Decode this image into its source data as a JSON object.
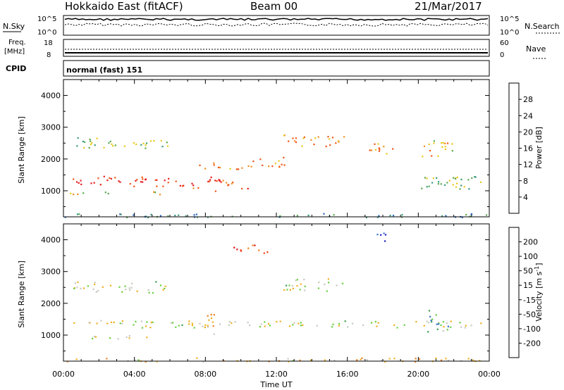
{
  "header": {
    "title": "Hokkaido East (fitACF)",
    "beam": "Beam 00",
    "date": "21/Mar/2017"
  },
  "status_panels": {
    "nsky_label": "N.Sky",
    "nsky_ticks": [
      "10^5",
      "10^0"
    ],
    "nsearch_label": "N.Search",
    "nsearch_ticks": [
      "10^5",
      "10^0"
    ],
    "freq_label_1": "Freq.",
    "freq_label_2": "[MHz]",
    "freq_ticks": [
      "18",
      "8"
    ],
    "nave_label": "Nave",
    "nave_ticks": [
      "60",
      "0"
    ],
    "cpid_label": "CPID",
    "cpid_value": "normal (fast) 151"
  },
  "chart_data": [
    {
      "type": "heatmap",
      "name": "power",
      "ylabel": "Slant Range [km]",
      "xlabel": "",
      "ylim": [
        180,
        4500
      ],
      "y_ticks": [
        "1000",
        "2000",
        "3000",
        "4000"
      ],
      "colorbar_label": "Power [dB]",
      "colorbar_ticks": [
        "4",
        "8",
        "12",
        "16",
        "20",
        "24",
        "28"
      ],
      "colorbar_colors": [
        "#1428e6",
        "#2a6ac0",
        "#3a9a80",
        "#5aaa50",
        "#e8c81e",
        "#f09020",
        "#f05818",
        "#e61e1e"
      ],
      "blobs": [
        {
          "t0": 0.3,
          "t1": 6.6,
          "r0": 1150,
          "r1": 1480,
          "level": 0.92
        },
        {
          "t0": 0.3,
          "t1": 5.5,
          "r0": 900,
          "r1": 1000,
          "level": 0.55
        },
        {
          "t0": 0.5,
          "t1": 6.0,
          "r0": 2350,
          "r1": 2700,
          "level": 0.45
        },
        {
          "t0": 6.6,
          "t1": 8.3,
          "r0": 1100,
          "r1": 1450,
          "level": 0.88
        },
        {
          "t0": 8.5,
          "t1": 10.5,
          "r0": 1000,
          "r1": 1450,
          "level": 0.9
        },
        {
          "t0": 7.5,
          "t1": 11.0,
          "r0": 1700,
          "r1": 1900,
          "level": 0.7
        },
        {
          "t0": 10.5,
          "t1": 12.5,
          "r0": 1750,
          "r1": 2100,
          "level": 0.72
        },
        {
          "t0": 12.3,
          "t1": 15.8,
          "r0": 2400,
          "r1": 2800,
          "level": 0.68
        },
        {
          "t0": 17.2,
          "t1": 18.8,
          "r0": 2100,
          "r1": 2500,
          "level": 0.75
        },
        {
          "t0": 19.9,
          "t1": 23.6,
          "r0": 1000,
          "r1": 1500,
          "level": 0.45
        },
        {
          "t0": 20.0,
          "t1": 22.0,
          "r0": 2100,
          "r1": 2600,
          "level": 0.62
        },
        {
          "t0": 0.0,
          "t1": 24.0,
          "r0": 180,
          "r1": 300,
          "level": 0.3
        }
      ]
    },
    {
      "type": "heatmap",
      "name": "velocity",
      "ylabel": "Slant Range [km]",
      "xlabel": "Time UT",
      "ylim": [
        180,
        4500
      ],
      "x_ticks": [
        "00:00",
        "04:00",
        "08:00",
        "12:00",
        "16:00",
        "20:00",
        "00:00"
      ],
      "y_ticks": [
        "1000",
        "2000",
        "3000",
        "4000"
      ],
      "colorbar_label": "Velocity [m s^-1]",
      "colorbar_ticks": [
        "200",
        "100",
        "50",
        "15",
        "-15",
        "-50",
        "-100",
        "-200"
      ],
      "colorbar_colors": [
        "#2020c0",
        "#3a78c8",
        "#3aa050",
        "#6ad040",
        "#c8c8c0",
        "#f0b020",
        "#f08020",
        "#f04018",
        "#e01010"
      ],
      "blobs": [
        {
          "t0": 0.3,
          "t1": 23.6,
          "r0": 1250,
          "r1": 1480,
          "level": 0.5
        },
        {
          "t0": 0.3,
          "t1": 5.5,
          "r0": 900,
          "r1": 1000,
          "level": 0.5
        },
        {
          "t0": 0.5,
          "t1": 6.0,
          "r0": 2350,
          "r1": 2700,
          "level": 0.5
        },
        {
          "t0": 8.0,
          "t1": 8.6,
          "r0": 1000,
          "r1": 1700,
          "level": 0.65
        },
        {
          "t0": 12.3,
          "t1": 15.8,
          "r0": 2400,
          "r1": 2800,
          "level": 0.5
        },
        {
          "t0": 17.5,
          "t1": 18.3,
          "r0": 3900,
          "r1": 4300,
          "level": 0.05
        },
        {
          "t0": 9.5,
          "t1": 11.5,
          "r0": 3600,
          "r1": 3900,
          "level": 0.85
        },
        {
          "t0": 20.5,
          "t1": 21.8,
          "r0": 1000,
          "r1": 1800,
          "level": 0.3
        },
        {
          "t0": 0.0,
          "t1": 24.0,
          "r0": 180,
          "r1": 300,
          "level": 0.6
        }
      ]
    }
  ]
}
